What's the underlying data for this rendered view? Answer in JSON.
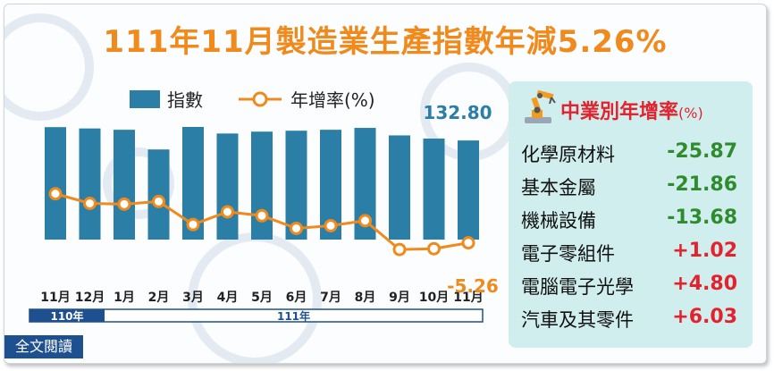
{
  "title": {
    "main": "111年11月製造業生產指數年減5.26%"
  },
  "legend": {
    "bar": "指數",
    "line": "年增率(%)"
  },
  "chart_data": {
    "type": "bar",
    "categories": [
      "11月",
      "12月",
      "1月",
      "2月",
      "3月",
      "4月",
      "5月",
      "6月",
      "7月",
      "8月",
      "9月",
      "10月",
      "11月"
    ],
    "year_groups": [
      {
        "label": "110年",
        "span": 2
      },
      {
        "label": "111年",
        "span": 11
      }
    ],
    "series": [
      {
        "name": "指數",
        "type": "bar",
        "color": "#2b7ea6",
        "values": [
          139.9,
          139.2,
          138.5,
          128.0,
          140.0,
          136.5,
          137.5,
          138.0,
          138.5,
          139.5,
          135.5,
          133.8,
          132.8
        ]
      },
      {
        "name": "年增率(%)",
        "type": "line",
        "color": "#f08a1c",
        "values": [
          7.5,
          5.0,
          4.8,
          5.5,
          -0.5,
          2.8,
          1.8,
          -1.5,
          -0.8,
          0.5,
          -7.0,
          -6.8,
          -5.26
        ]
      }
    ],
    "labels": {
      "last_index": "132.80",
      "last_growth": "-5.26"
    }
  },
  "industries": {
    "title": "中業別年增率",
    "unit": "(%)",
    "icon": "robot-arm-icon",
    "items": [
      {
        "name": "化學原材料",
        "value": "-25.87",
        "sign": "neg"
      },
      {
        "name": "基本金屬",
        "value": "-21.86",
        "sign": "neg"
      },
      {
        "name": "機械設備",
        "value": "-13.68",
        "sign": "neg"
      },
      {
        "name": "電子零組件",
        "value": "+1.02",
        "sign": "pos"
      },
      {
        "name": "電腦電子光學",
        "value": "+4.80",
        "sign": "pos"
      },
      {
        "name": "汽車及其零件",
        "value": "+6.03",
        "sign": "pos"
      }
    ]
  },
  "read_all": "全文閱讀",
  "colors": {
    "accent": "#f08a1c",
    "bar": "#2b7ea6",
    "panel": "#cfeeed",
    "timeline": "#1e4f8f"
  }
}
